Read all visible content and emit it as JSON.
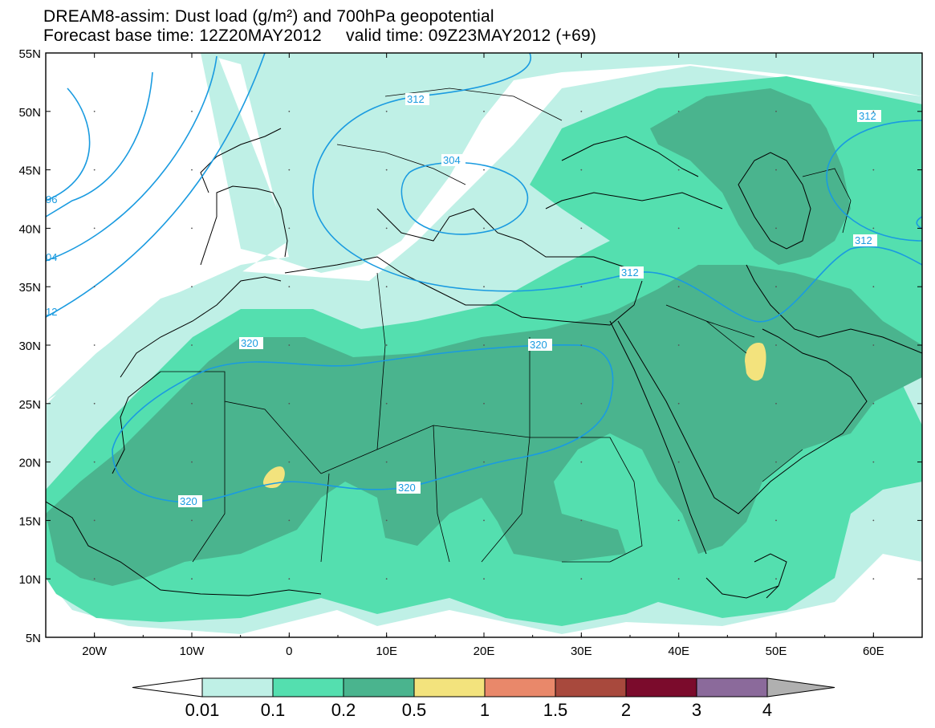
{
  "header": {
    "title_line1": "DREAM8-assim: Dust load (g/m²) and 700hPa geopotential",
    "title_line2": "Forecast base time: 12Z20MAY2012     valid time: 09Z23MAY2012 (+69)"
  },
  "map": {
    "lat_range": [
      5,
      55
    ],
    "lon_range": [
      -25,
      65
    ],
    "lat_labels": [
      "5N",
      "10N",
      "15N",
      "20N",
      "25N",
      "30N",
      "35N",
      "40N",
      "45N",
      "50N",
      "55N"
    ],
    "lon_labels": [
      "20W",
      "10W",
      "0",
      "10E",
      "20E",
      "30E",
      "40E",
      "50E",
      "60E"
    ],
    "contour_color": "#1a9be0",
    "contour_labels": [
      {
        "text": "312"
      },
      {
        "text": "304"
      },
      {
        "text": "312"
      },
      {
        "text": "312"
      },
      {
        "text": "312"
      },
      {
        "text": "320"
      },
      {
        "text": "320"
      },
      {
        "text": "320"
      },
      {
        "text": "320"
      },
      {
        "text": "96"
      },
      {
        "text": "04"
      },
      {
        "text": "12"
      }
    ]
  },
  "colorbar": {
    "colors": [
      "#bff0e6",
      "#54dfaf",
      "#4ab48e",
      "#f3e37d",
      "#e9886a",
      "#a8493d",
      "#7b0b2c",
      "#8b6a9b"
    ],
    "labels": [
      "0.01",
      "0.1",
      "0.2",
      "0.5",
      "1",
      "1.5",
      "2",
      "3",
      "4"
    ],
    "under_color": "#ffffff",
    "over_color": "#b0b0b0"
  }
}
